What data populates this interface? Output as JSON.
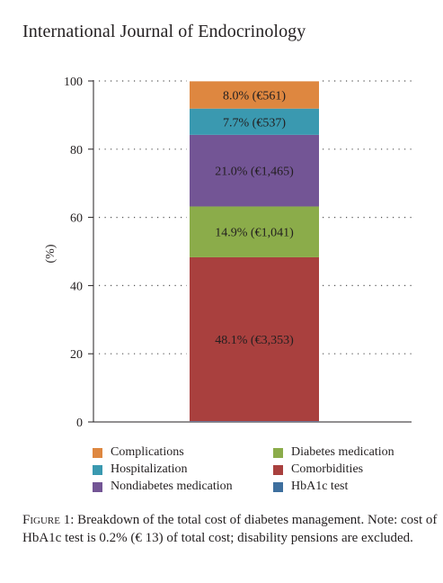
{
  "journal_title": "International Journal of Endocrinology",
  "figure_caption": {
    "label": "Figure 1:",
    "text": " Breakdown of the total cost of diabetes management. Note: cost of HbA1c test is 0.2% (€ 13) of total cost; disability pensions are excluded."
  },
  "chart_data": {
    "type": "bar",
    "stacked": true,
    "ylabel": "(%)",
    "ylim": [
      0,
      100
    ],
    "yticks": [
      0,
      20,
      40,
      60,
      80,
      100
    ],
    "grid": "dotted horizontal",
    "legend_position": "bottom",
    "series": [
      {
        "name": "HbA1c test",
        "value": 0.2,
        "label": "",
        "color": "#3e6f9e"
      },
      {
        "name": "Comorbidities",
        "value": 48.1,
        "label": "48.1% (€3,353)",
        "color": "#a9403e"
      },
      {
        "name": "Diabetes medication",
        "value": 14.9,
        "label": "14.9% (€1,041)",
        "color": "#8bac4a"
      },
      {
        "name": "Nondiabetes medication",
        "value": 21.0,
        "label": "21.0% (€1,465)",
        "color": "#735595"
      },
      {
        "name": "Hospitalization",
        "value": 7.7,
        "label": "7.7% (€537)",
        "color": "#3a99b0"
      },
      {
        "name": "Complications",
        "value": 8.0,
        "label": "8.0% (€561)",
        "color": "#de8740"
      }
    ],
    "legend_order": [
      "Complications",
      "Diabetes medication",
      "Hospitalization",
      "Comorbidities",
      "Nondiabetes medication",
      "HbA1c test"
    ]
  }
}
